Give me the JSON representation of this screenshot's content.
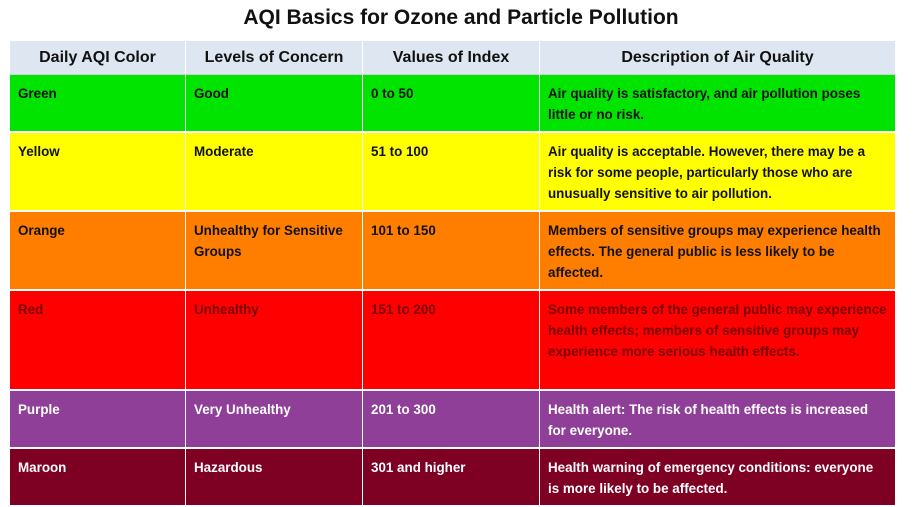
{
  "title": "AQI Basics for Ozone and Particle Pollution",
  "table": {
    "headers": [
      "Daily AQI Color",
      "Levels of Concern",
      "Values of Index",
      "Description of Air Quality"
    ],
    "rows": [
      {
        "color": "Green",
        "level": "Good",
        "values": "0 to 50",
        "description": "Air quality is satisfactory, and air pollution poses little or no risk.",
        "bg": "#00e400",
        "fg": "#111111"
      },
      {
        "color": "Yellow",
        "level": "Moderate",
        "values": "51 to 100",
        "description": "Air quality is acceptable. However, there may be a risk for some people, particularly those who are unusually sensitive to air pollution.",
        "bg": "#ffff00",
        "fg": "#111111"
      },
      {
        "color": "Orange",
        "level": "Unhealthy for Sensitive Groups",
        "values": "101 to 150",
        "description": "Members of sensitive groups may experience health effects. The general public is less likely to be affected.",
        "bg": "#ff7e00",
        "fg": "#111111"
      },
      {
        "color": "Red",
        "level": "Unhealthy",
        "values": "151 to 200",
        "description": "Some members of the general public may experience health effects; members of sensitive groups may experience more serious health effects.",
        "bg": "#ff0000",
        "fg": "#7a0000"
      },
      {
        "color": "Purple",
        "level": "Very Unhealthy",
        "values": "201 to 300",
        "description": "Health alert: The risk of health effects is increased for everyone.",
        "bg": "#8f3f97",
        "fg": "#ffffff"
      },
      {
        "color": "Maroon",
        "level": "Hazardous",
        "values": "301 and higher",
        "description": "Health warning of emergency conditions: everyone is more likely to be affected.",
        "bg": "#7e0023",
        "fg": "#ffffff"
      }
    ]
  }
}
